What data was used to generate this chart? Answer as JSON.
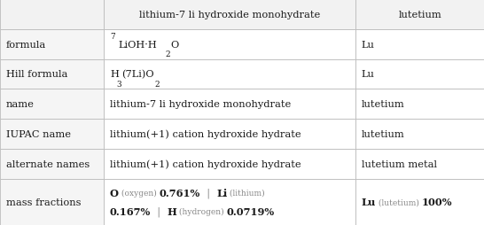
{
  "col_headers": [
    "",
    "lithium-7 li hydroxide monohydrate",
    "lutetium"
  ],
  "rows": [
    {
      "label": "formula",
      "col2": "Lu"
    },
    {
      "label": "Hill formula",
      "col2": "Lu"
    },
    {
      "label": "name",
      "col1_text": "lithium-7 li hydroxide monohydrate",
      "col2": "lutetium"
    },
    {
      "label": "IUPAC name",
      "col1_text": "lithium(+1) cation hydroxide hydrate",
      "col2": "lutetium"
    },
    {
      "label": "alternate names",
      "col1_text": "lithium(+1) cation hydroxide hydrate",
      "col2": "lutetium metal"
    },
    {
      "label": "mass fractions",
      "col2": ""
    }
  ],
  "bg_color": "#ffffff",
  "header_bg": "#f2f2f2",
  "label_bg": "#f5f5f5",
  "line_color": "#bbbbbb",
  "text_color": "#1a1a1a",
  "gray_color": "#888888",
  "figsize": [
    5.46,
    2.55
  ],
  "dpi": 100,
  "col_bounds": [
    0.0,
    0.215,
    0.735,
    1.0
  ],
  "row_heights_rel": [
    1.0,
    1.0,
    1.0,
    1.0,
    1.0,
    1.0,
    1.55
  ],
  "font_size": 8.2,
  "small_font_size": 6.5,
  "formula_row1": "LiOH·H",
  "formula_sup": "7",
  "formula_sub2": "2",
  "formula_end": "O",
  "hill_h": "H",
  "hill_sub3": "3",
  "hill_mid": "(7Li)O",
  "hill_sub2": "2",
  "mass_line1": [
    {
      "type": "bold",
      "text": "O"
    },
    {
      "type": "gray",
      "text": " (oxygen) "
    },
    {
      "type": "bold",
      "text": "0.761%"
    },
    {
      "type": "gray",
      "text": "  |  "
    },
    {
      "type": "bold",
      "text": "Li"
    },
    {
      "type": "gray",
      "text": " (lithium)"
    }
  ],
  "mass_line2": [
    {
      "type": "bold",
      "text": "0.167%"
    },
    {
      "type": "gray",
      "text": "  |  "
    },
    {
      "type": "bold",
      "text": "H"
    },
    {
      "type": "gray",
      "text": " (hydrogen) "
    },
    {
      "type": "bold",
      "text": "0.0719%"
    }
  ],
  "mass_col2_line1_bold": "Lu",
  "mass_col2_line1_gray": " (lutetium) ",
  "mass_col2_line1_bold2": "100%"
}
